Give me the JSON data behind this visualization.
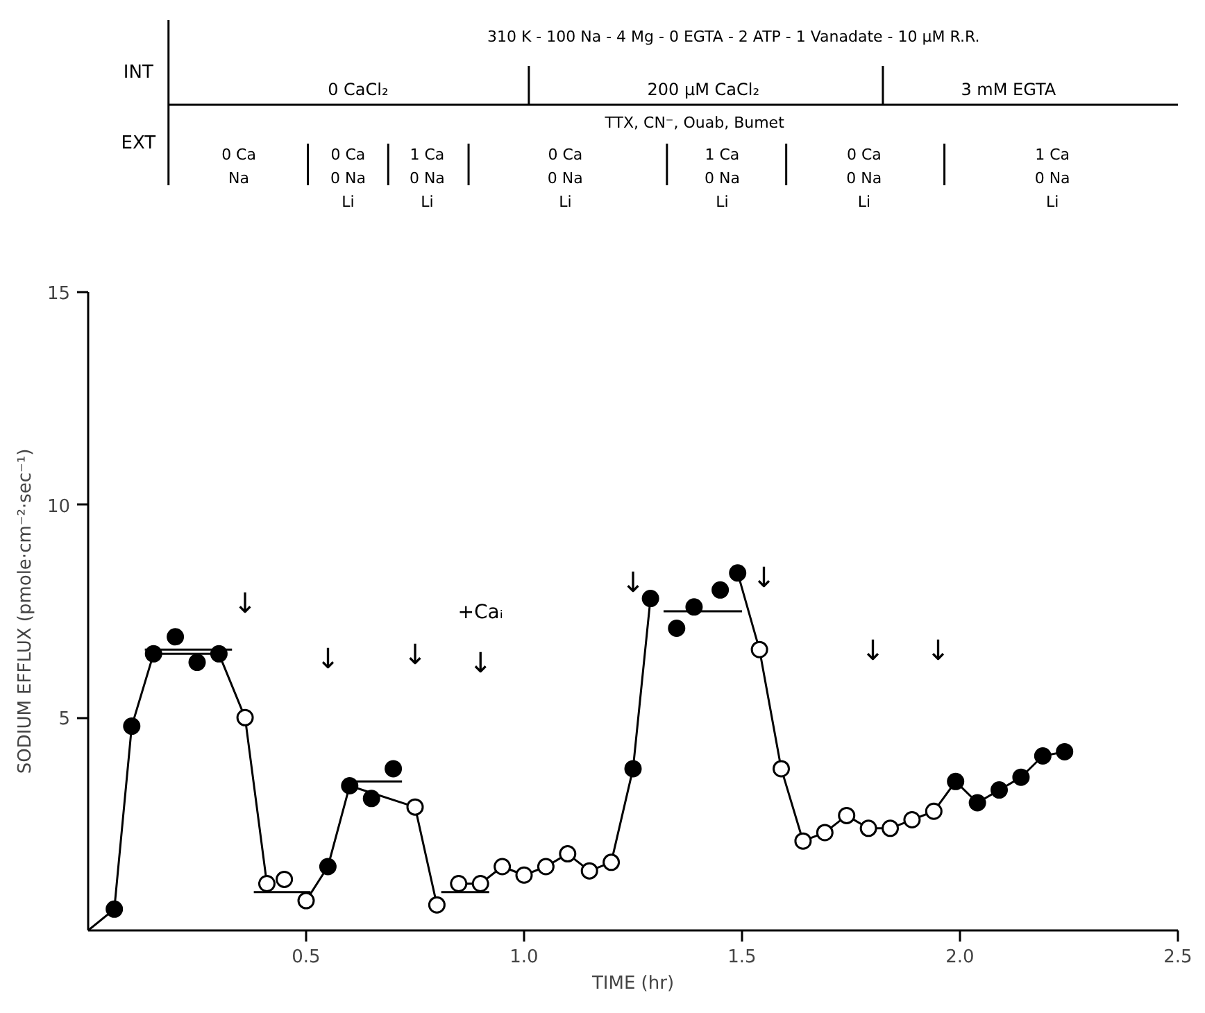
{
  "chart_data": {
    "type": "scatter",
    "xlabel": "TIME (hr)",
    "ylabel": "SODIUM EFFLUX (pmole·cm⁻²·sec⁻¹)",
    "xlim": [
      0,
      2.5
    ],
    "ylim": [
      0,
      15
    ],
    "xticks": [
      {
        "value": 0.5,
        "label": "0.5"
      },
      {
        "value": 1.0,
        "label": "1.0"
      },
      {
        "value": 1.5,
        "label": "1.5"
      },
      {
        "value": 2.0,
        "label": "2.0"
      },
      {
        "value": 2.5,
        "label": "2.5"
      }
    ],
    "yticks": [
      5,
      10,
      15
    ],
    "line_style": "solid",
    "series": [
      {
        "type": "line",
        "marker": "none",
        "color": "#000000",
        "x": [
          0,
          0.06,
          0.1,
          0.15,
          0.3,
          0.36,
          0.41,
          0.45,
          0.5,
          0.55,
          0.6,
          0.75,
          0.8,
          0.82,
          0.85,
          0.9,
          0.95,
          1.0,
          1.05,
          1.1,
          1.15,
          1.2,
          1.25,
          1.29,
          1.39,
          1.49,
          1.54,
          1.59,
          1.64,
          1.69,
          1.74,
          1.79,
          1.84,
          1.89,
          1.94,
          1.99,
          2.04,
          2.09,
          2.14,
          2.19,
          2.24
        ],
        "values": [
          0,
          0.5,
          4.8,
          6.5,
          6.5,
          5.0,
          1.1,
          null,
          0.7,
          1.5,
          3.4,
          2.9,
          0.6,
          null,
          1.1,
          1.1,
          1.5,
          1.3,
          1.5,
          1.8,
          1.4,
          1.6,
          3.8,
          7.8,
          null,
          8.4,
          6.6,
          3.8,
          2.1,
          2.3,
          2.7,
          2.4,
          2.4,
          2.6,
          2.8,
          3.5,
          3.0,
          3.3,
          3.6,
          4.1,
          4.2
        ]
      },
      {
        "type": "line",
        "marker": "none",
        "color": "#000000",
        "x": [
          0.13,
          0.33
        ],
        "values": [
          6.6,
          6.6
        ]
      },
      {
        "type": "line",
        "marker": "none",
        "color": "#000000",
        "x": [
          0.38,
          0.51
        ],
        "values": [
          0.9,
          0.9
        ]
      },
      {
        "type": "line",
        "marker": "none",
        "color": "#000000",
        "x": [
          0.59,
          0.72
        ],
        "values": [
          3.5,
          3.5
        ]
      },
      {
        "type": "line",
        "marker": "none",
        "color": "#000000",
        "x": [
          0.81,
          0.92
        ],
        "values": [
          0.9,
          0.9
        ]
      },
      {
        "type": "line",
        "marker": "none",
        "color": "#000000",
        "x": [
          1.32,
          1.5
        ],
        "values": [
          7.5,
          7.5
        ]
      },
      {
        "marker": "circle",
        "color": "#000000",
        "x": [
          0.06,
          0.1,
          0.15,
          0.2,
          0.25,
          0.3,
          0.55,
          0.6,
          0.65,
          0.7,
          1.25,
          1.29,
          1.35,
          1.39,
          1.45,
          1.49,
          1.99,
          2.04,
          2.09,
          2.14,
          2.19,
          2.24
        ],
        "values": [
          0.5,
          4.8,
          6.5,
          6.9,
          6.3,
          6.5,
          1.5,
          3.4,
          3.1,
          3.8,
          3.8,
          7.8,
          7.1,
          7.6,
          8.0,
          8.4,
          3.5,
          3.0,
          3.3,
          3.6,
          4.1,
          4.2
        ]
      },
      {
        "marker": "circle",
        "color": "#ffffff",
        "x": [
          0.36,
          0.41,
          0.45,
          0.5,
          0.75,
          0.8,
          0.85,
          0.9,
          0.95,
          1.0,
          1.05,
          1.1,
          1.15,
          1.2,
          1.54,
          1.59,
          1.64,
          1.69,
          1.74,
          1.79,
          1.84,
          1.89,
          1.94
        ],
        "values": [
          5.0,
          1.1,
          1.2,
          0.7,
          2.9,
          0.6,
          1.1,
          1.1,
          1.5,
          1.3,
          1.5,
          1.8,
          1.4,
          1.6,
          6.6,
          3.8,
          2.1,
          2.3,
          2.7,
          2.4,
          2.4,
          2.6,
          2.8
        ]
      }
    ],
    "annotations": [
      "INT",
      "EXT",
      "310 K - 100 Na - 4 Mg - 0 EGTA - 2 ATP - 1 Vanadate - 10 μM R.R.",
      "0 CaCl₂",
      "200 μM CaCl₂",
      "3 mM EGTA",
      "TTX, CN⁻, Ouab, Bumet",
      "0 Ca\nNa",
      "0 Ca\n0 Na\nLi",
      "1 Ca\n0 Na\nLi",
      "0 Ca\n0 Na\nLi",
      "1 Ca\n0 Na\nLi",
      "0 Ca\n0 Na\nLi",
      "1 Ca\n0 Na\nLi",
      "↓",
      "↓",
      "↓",
      "↓",
      "+Caᵢ",
      "↓",
      "↓",
      "↓",
      "↓"
    ]
  }
}
